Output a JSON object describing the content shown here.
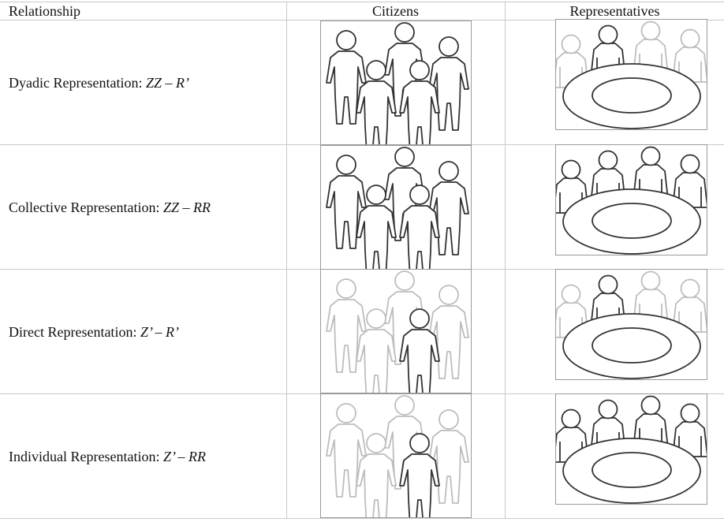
{
  "headers": {
    "relationship": "Relationship",
    "citizens": "Citizens",
    "representatives": "Representatives"
  },
  "rows": [
    {
      "label": "Dyadic Representation: ",
      "formula": "ZZ – R’",
      "citizens_active": "all",
      "reps_active": "one"
    },
    {
      "label": "Collective Representation: ",
      "formula": "ZZ – RR",
      "citizens_active": "all",
      "reps_active": "all"
    },
    {
      "label": "Direct Representation: ",
      "formula": "Z’ – R’",
      "citizens_active": "one",
      "reps_active": "one"
    },
    {
      "label": "Individual Representation: ",
      "formula": "Z’ – RR",
      "citizens_active": "one",
      "reps_active": "all"
    }
  ],
  "colors": {
    "active_stroke": "#333333",
    "faded_stroke": "#bdbdbd",
    "grid": "#c9c9c9",
    "box_border": "#9a9a9a"
  }
}
